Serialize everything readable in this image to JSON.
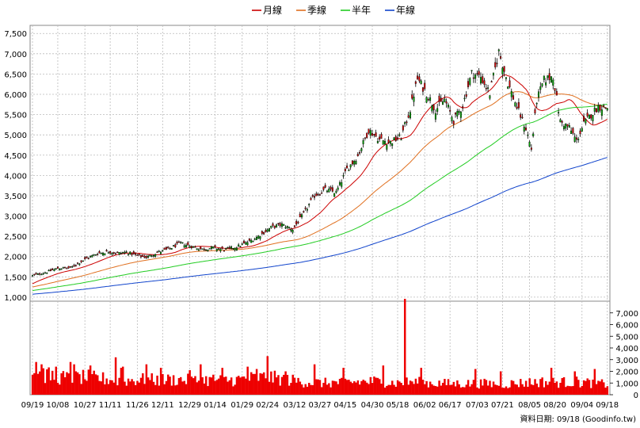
{
  "legend": [
    {
      "label": "月線",
      "color": "#cc0000"
    },
    {
      "label": "季線",
      "color": "#e07020"
    },
    {
      "label": "半年",
      "color": "#22cc22"
    },
    {
      "label": "年線",
      "color": "#1144cc"
    }
  ],
  "footer": {
    "source": "資料日期: 09/18 (Goodinfo.tw)"
  },
  "chart_data": {
    "type": "candlestick",
    "x_ticks": [
      "09/19",
      "10/08",
      "10/27",
      "11/11",
      "11/26",
      "12/11",
      "12/29",
      "01/14",
      "01/29",
      "02/24",
      "03/12",
      "03/27",
      "04/15",
      "04/30",
      "05/18",
      "06/02",
      "06/17",
      "07/03",
      "07/21",
      "08/05",
      "08/20",
      "09/04",
      "09/18"
    ],
    "price_axis": {
      "ticks": [
        "7,500",
        "7,000",
        "6,500",
        "6,000",
        "5,500",
        "5,000",
        "4,500",
        "4,000",
        "3,500",
        "3,000",
        "2,500",
        "2,000",
        "1,500",
        "1,000"
      ],
      "ylim": [
        900,
        7700
      ]
    },
    "volume_axis": {
      "ticks": [
        "7,000",
        "6,000",
        "5,000",
        "4,000",
        "3,000",
        "2,000",
        "1,000",
        "0"
      ],
      "ylim": [
        0,
        8000
      ]
    },
    "price_anchors": [
      [
        0,
        1530
      ],
      [
        8,
        1620
      ],
      [
        14,
        1710
      ],
      [
        21,
        1720
      ],
      [
        29,
        1930
      ],
      [
        36,
        2080
      ],
      [
        42,
        2120
      ],
      [
        47,
        2080
      ],
      [
        52,
        2110
      ],
      [
        58,
        2020
      ],
      [
        63,
        1980
      ],
      [
        69,
        2100
      ],
      [
        75,
        2180
      ],
      [
        82,
        2330
      ],
      [
        88,
        2250
      ],
      [
        94,
        2180
      ],
      [
        100,
        2220
      ],
      [
        106,
        2170
      ],
      [
        113,
        2240
      ],
      [
        120,
        2370
      ],
      [
        126,
        2530
      ],
      [
        132,
        2720
      ],
      [
        138,
        2790
      ],
      [
        144,
        2670
      ],
      [
        150,
        3050
      ],
      [
        156,
        3500
      ],
      [
        162,
        3650
      ],
      [
        168,
        3580
      ],
      [
        174,
        4150
      ],
      [
        180,
        4480
      ],
      [
        186,
        5120
      ],
      [
        192,
        4880
      ],
      [
        198,
        4820
      ],
      [
        204,
        4950
      ],
      [
        209,
        5620
      ],
      [
        213,
        6380
      ],
      [
        218,
        6030
      ],
      [
        223,
        5620
      ],
      [
        228,
        5870
      ],
      [
        233,
        5350
      ],
      [
        238,
        5720
      ],
      [
        243,
        6520
      ],
      [
        248,
        6430
      ],
      [
        253,
        6020
      ],
      [
        258,
        7050
      ],
      [
        263,
        6280
      ],
      [
        268,
        5680
      ],
      [
        273,
        5150
      ],
      [
        276,
        4650
      ],
      [
        279,
        5850
      ],
      [
        283,
        6350
      ],
      [
        288,
        6450
      ],
      [
        292,
        5330
      ],
      [
        297,
        5180
      ],
      [
        301,
        4850
      ],
      [
        305,
        5270
      ],
      [
        309,
        5500
      ],
      [
        313,
        5700
      ],
      [
        318,
        5660
      ]
    ],
    "vol_anchors": [
      [
        0,
        1900
      ],
      [
        10,
        1600
      ],
      [
        20,
        1400
      ],
      [
        30,
        1500
      ],
      [
        40,
        1350
      ],
      [
        50,
        1200
      ],
      [
        60,
        1300
      ],
      [
        70,
        1250
      ],
      [
        80,
        1300
      ],
      [
        90,
        1200
      ],
      [
        100,
        1300
      ],
      [
        110,
        1250
      ],
      [
        120,
        1400
      ],
      [
        130,
        1500
      ],
      [
        140,
        1300
      ],
      [
        150,
        1100
      ],
      [
        160,
        1000
      ],
      [
        170,
        1050
      ],
      [
        180,
        1100
      ],
      [
        190,
        1150
      ],
      [
        200,
        1000
      ],
      [
        210,
        1100
      ],
      [
        220,
        1000
      ],
      [
        230,
        950
      ],
      [
        240,
        950
      ],
      [
        250,
        950
      ],
      [
        260,
        900
      ],
      [
        270,
        1000
      ],
      [
        280,
        1100
      ],
      [
        290,
        1050
      ],
      [
        300,
        1100
      ],
      [
        310,
        1000
      ],
      [
        318,
        900
      ]
    ],
    "vol_spikes": [
      [
        2,
        2800
      ],
      [
        5,
        2600
      ],
      [
        13,
        2400
      ],
      [
        21,
        2800
      ],
      [
        23,
        2600
      ],
      [
        32,
        2500
      ],
      [
        46,
        3200
      ],
      [
        49,
        2300
      ],
      [
        50,
        2400
      ],
      [
        63,
        2600
      ],
      [
        71,
        2300
      ],
      [
        87,
        2100
      ],
      [
        93,
        2600
      ],
      [
        105,
        2300
      ],
      [
        119,
        2400
      ],
      [
        124,
        2200
      ],
      [
        130,
        3300
      ],
      [
        140,
        2000
      ],
      [
        156,
        2600
      ],
      [
        172,
        2300
      ],
      [
        194,
        2500
      ],
      [
        206,
        8200
      ],
      [
        215,
        2300
      ],
      [
        245,
        2200
      ],
      [
        259,
        2000
      ],
      [
        287,
        2300
      ],
      [
        300,
        2000
      ],
      [
        311,
        2200
      ]
    ],
    "ma_periods": [
      20,
      60,
      120,
      240
    ],
    "ma_seed_base": [
      1100,
      950,
      780,
      600
    ],
    "n_candles": 319
  }
}
